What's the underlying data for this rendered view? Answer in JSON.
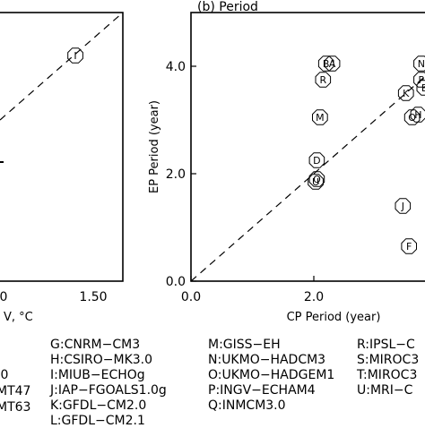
{
  "chart_data": [
    {
      "panel": "a",
      "type": "scatter",
      "xlim_visible_ticks": [
        "0",
        "1.50"
      ],
      "xlabel_fragment": "V, °C",
      "points": [
        {
          "label": "I",
          "x": 1.2,
          "y": 1.8
        }
      ],
      "one_to_one_line": true
    },
    {
      "panel": "b",
      "type": "scatter",
      "title": "(b) Period",
      "xlabel": "CP Period (year)",
      "ylabel": "EP Period (year)",
      "xlim": [
        0,
        4.2
      ],
      "ylim": [
        0,
        5
      ],
      "xticks": [
        "0.0",
        "2.0"
      ],
      "yticks": [
        "0.0",
        "2.0",
        "4.0"
      ],
      "one_to_one_line": true,
      "points": [
        {
          "label": "B",
          "x": 2.2,
          "y": 4.05
        },
        {
          "label": "A",
          "x": 2.3,
          "y": 4.05
        },
        {
          "label": "R",
          "x": 2.15,
          "y": 3.75
        },
        {
          "label": "M",
          "x": 2.1,
          "y": 3.05
        },
        {
          "label": "D",
          "x": 2.05,
          "y": 2.25
        },
        {
          "label": "Q",
          "x": 2.05,
          "y": 1.9
        },
        {
          "label": "U",
          "x": 2.03,
          "y": 1.85
        },
        {
          "label": "J",
          "x": 3.45,
          "y": 1.4
        },
        {
          "label": "F",
          "x": 3.55,
          "y": 0.65
        },
        {
          "label": "N",
          "x": 3.75,
          "y": 4.05
        },
        {
          "label": "P",
          "x": 3.75,
          "y": 3.75
        },
        {
          "label": "K",
          "x": 3.5,
          "y": 3.5
        },
        {
          "label": "E",
          "x": 3.8,
          "y": 3.6
        },
        {
          "label": "H",
          "x": 3.7,
          "y": 3.1
        },
        {
          "label": "O",
          "x": 3.6,
          "y": 3.05
        }
      ]
    }
  ],
  "legend": {
    "col0": [
      "",
      ".0",
      "MT47",
      "MT63"
    ],
    "col1": [
      "G:CNRM−CM3",
      "H:CSIRO−MK3.0",
      "I:MIUB−ECHOg",
      "J:IAP−FGOALS1.0g",
      "K:GFDL−CM2.0",
      "L:GFDL−CM2.1"
    ],
    "col2": [
      "M:GISS−EH",
      "N:UKMO−HADCM3",
      "O:UKMO−HADGEM1",
      "P:INGV−ECHAM4",
      "Q:INMCM3.0"
    ],
    "col3": [
      "R:IPSL−C",
      "S:MIROC3",
      "T:MIROC3",
      "U:MRI−C"
    ]
  }
}
